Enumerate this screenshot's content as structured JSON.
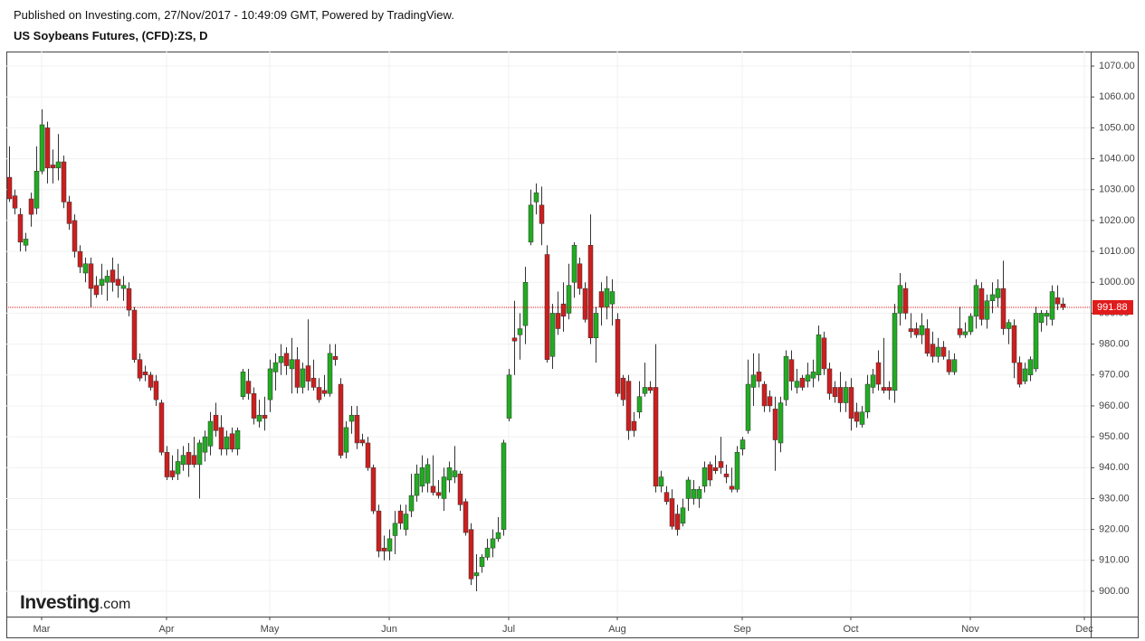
{
  "header": {
    "published": "Published on Investing.com, 27/Nov/2017 - 10:49:09 GMT, Powered by TradingView."
  },
  "logo": {
    "name": "Investing",
    "suffix": ".com"
  },
  "chart_data": {
    "type": "candlestick",
    "title": "US Soybeans Futures, (CFD):ZS, D",
    "up_color": "#22ab22",
    "down_color": "#cc1f1f",
    "wick_color": "#333333",
    "grid": true,
    "ylim": [
      891.8,
      1074.7
    ],
    "yticks": [
      {
        "value": 900,
        "label": "900.00"
      },
      {
        "value": 910,
        "label": "910.00"
      },
      {
        "value": 920,
        "label": "920.00"
      },
      {
        "value": 930,
        "label": "930.00"
      },
      {
        "value": 940,
        "label": "940.00"
      },
      {
        "value": 950,
        "label": "950.00"
      },
      {
        "value": 960,
        "label": "960.00"
      },
      {
        "value": 970,
        "label": "970.00"
      },
      {
        "value": 980,
        "label": "980.00"
      },
      {
        "value": 990,
        "label": "990.00"
      },
      {
        "value": 1000,
        "label": "1000.00"
      },
      {
        "value": 1010,
        "label": "1010.00"
      },
      {
        "value": 1020,
        "label": "1020.00"
      },
      {
        "value": 1030,
        "label": "1030.00"
      },
      {
        "value": 1040,
        "label": "1040.00"
      },
      {
        "value": 1050,
        "label": "1050.00"
      },
      {
        "value": 1060,
        "label": "1060.00"
      },
      {
        "value": 1070,
        "label": "1070.00"
      }
    ],
    "last_price": 991.88,
    "last_price_color": "#e01b1b",
    "categories": [
      null,
      null,
      null,
      null,
      null,
      null,
      "Mar",
      null,
      null,
      null,
      null,
      null,
      null,
      null,
      null,
      null,
      null,
      null,
      null,
      null,
      null,
      null,
      null,
      null,
      null,
      null,
      null,
      null,
      null,
      "Apr",
      null,
      null,
      null,
      null,
      null,
      null,
      null,
      null,
      null,
      null,
      null,
      null,
      null,
      null,
      null,
      null,
      null,
      null,
      "May",
      null,
      null,
      null,
      null,
      null,
      null,
      null,
      null,
      null,
      null,
      null,
      null,
      null,
      null,
      null,
      null,
      null,
      null,
      null,
      null,
      null,
      "Jun",
      null,
      null,
      null,
      null,
      null,
      null,
      null,
      null,
      null,
      null,
      null,
      null,
      null,
      null,
      null,
      null,
      null,
      null,
      null,
      null,
      null,
      "Jul",
      null,
      null,
      null,
      null,
      null,
      null,
      null,
      null,
      null,
      null,
      null,
      null,
      null,
      null,
      null,
      null,
      null,
      null,
      null,
      "Aug",
      null,
      null,
      null,
      null,
      null,
      null,
      null,
      null,
      null,
      null,
      null,
      null,
      null,
      null,
      null,
      null,
      null,
      null,
      null,
      null,
      null,
      null,
      "Sep",
      null,
      null,
      null,
      null,
      null,
      null,
      null,
      null,
      null,
      null,
      null,
      null,
      null,
      null,
      null,
      null,
      null,
      null,
      null,
      "Oct",
      null,
      null,
      null,
      null,
      null,
      null,
      null,
      null,
      null,
      null,
      null,
      null,
      null,
      null,
      null,
      null,
      null,
      null,
      null,
      null,
      null,
      "Nov",
      null,
      null,
      null,
      null,
      null,
      null,
      null,
      null,
      null,
      null,
      null,
      null,
      null,
      null,
      null,
      null,
      null,
      null,
      null,
      null,
      "Dec"
    ],
    "open": [
      1034,
      1028,
      1022,
      1012,
      1027,
      1024,
      1036,
      1050,
      1038,
      1037,
      1039,
      1026,
      1020,
      1010,
      1003,
      1006,
      999,
      999,
      1000,
      1004,
      1001,
      998,
      998,
      991,
      975,
      971,
      970,
      968,
      961,
      945,
      939,
      938,
      941,
      945,
      944,
      941,
      945,
      947,
      957,
      953,
      946,
      951,
      946,
      963,
      968,
      964,
      955,
      957,
      962,
      971,
      974,
      977,
      972,
      975,
      966,
      973,
      969,
      966,
      965,
      964,
      976,
      967,
      945,
      955,
      957,
      949,
      948,
      940,
      926,
      914,
      913,
      918,
      926,
      920,
      926,
      931,
      934,
      935,
      934,
      932,
      930,
      936,
      937,
      938,
      929,
      920,
      905,
      908,
      911,
      914,
      917,
      920,
      956,
      982,
      983,
      986,
      1013,
      1026,
      1025,
      1009,
      976,
      990,
      993,
      990,
      1000,
      1006,
      998,
      1012,
      982,
      997,
      992,
      993,
      988,
      969,
      968,
      955,
      958,
      964,
      966,
      966,
      934,
      932,
      930,
      925,
      922,
      930,
      930,
      930,
      934,
      941,
      940,
      942,
      938,
      934,
      933,
      946,
      952,
      966,
      971,
      967,
      963,
      959,
      948,
      962,
      975,
      966,
      969,
      968,
      969,
      970,
      982,
      972,
      966,
      966,
      961,
      966,
      958,
      954,
      958,
      966,
      974,
      966,
      966,
      965,
      990,
      998,
      985,
      985,
      983,
      985,
      980,
      976,
      979,
      975,
      971,
      985,
      983,
      984,
      989,
      998,
      988,
      994,
      995,
      998,
      985,
      986,
      974,
      968,
      970,
      972,
      987,
      989,
      988,
      995,
      993,
      null,
      null,
      null,
      null
    ],
    "high": [
      1044,
      1030,
      1024,
      1016,
      1029,
      1044,
      1056,
      1052,
      1043,
      1048,
      1041,
      1028,
      1022,
      1012,
      1008,
      1008,
      1002,
      1006,
      1004,
      1008,
      1006,
      1002,
      1000,
      992,
      977,
      973,
      971,
      970,
      962,
      947,
      944,
      946,
      947,
      948,
      950,
      949,
      952,
      958,
      961,
      957,
      952,
      953,
      953,
      972,
      972,
      966,
      962,
      963,
      975,
      977,
      980,
      979,
      982,
      979,
      974,
      988,
      975,
      969,
      970,
      980,
      980,
      969,
      955,
      960,
      960,
      951,
      950,
      941,
      928,
      918,
      920,
      926,
      928,
      928,
      938,
      941,
      944,
      943,
      944,
      936,
      940,
      942,
      947,
      939,
      930,
      922,
      912,
      912,
      917,
      920,
      924,
      949,
      972,
      994,
      990,
      1005,
      1030,
      1032,
      1031,
      1012,
      993,
      997,
      1000,
      1006,
      1013,
      1008,
      1000,
      1022,
      992,
      1000,
      1002,
      1001,
      990,
      970,
      970,
      958,
      968,
      974,
      968,
      980,
      939,
      934,
      933,
      928,
      930,
      937,
      936,
      934,
      942,
      942,
      944,
      950,
      941,
      940,
      947,
      950,
      975,
      977,
      977,
      968,
      965,
      963,
      963,
      978,
      978,
      972,
      970,
      974,
      975,
      986,
      984,
      974,
      968,
      971,
      968,
      969,
      961,
      960,
      970,
      972,
      978,
      982,
      968,
      993,
      1003,
      1000,
      990,
      987,
      990,
      988,
      984,
      982,
      981,
      978,
      977,
      992,
      987,
      990,
      1001,
      1000,
      996,
      1000,
      1001,
      1007,
      988,
      988,
      976,
      974,
      976,
      992,
      991,
      991,
      999,
      999,
      995,
      null,
      null,
      null,
      null
    ],
    "low": [
      1026,
      1022,
      1010,
      1010,
      1018,
      1022,
      1035,
      1032,
      1032,
      1033,
      1024,
      1017,
      1008,
      1003,
      1000,
      992,
      995,
      996,
      994,
      997,
      995,
      994,
      989,
      974,
      968,
      968,
      965,
      960,
      944,
      936,
      936,
      936,
      939,
      937,
      940,
      930,
      942,
      944,
      950,
      944,
      944,
      945,
      944,
      962,
      962,
      954,
      953,
      952,
      958,
      965,
      970,
      970,
      964,
      964,
      964,
      965,
      965,
      961,
      963,
      963,
      973,
      943,
      943,
      951,
      946,
      947,
      939,
      925,
      911,
      910,
      910,
      912,
      920,
      918,
      924,
      929,
      932,
      932,
      931,
      930,
      926,
      932,
      935,
      926,
      918,
      902,
      900,
      906,
      910,
      911,
      916,
      918,
      955,
      970,
      975,
      980,
      1012,
      1022,
      1012,
      974,
      972,
      983,
      984,
      988,
      995,
      996,
      987,
      980,
      974,
      986,
      988,
      986,
      963,
      960,
      949,
      950,
      956,
      963,
      964,
      932,
      932,
      928,
      920,
      918,
      921,
      926,
      928,
      927,
      932,
      934,
      938,
      938,
      935,
      932,
      932,
      944,
      951,
      960,
      966,
      958,
      958,
      939,
      945,
      960,
      965,
      964,
      965,
      966,
      966,
      968,
      970,
      962,
      961,
      958,
      958,
      952,
      953,
      953,
      956,
      964,
      965,
      964,
      962,
      961,
      986,
      988,
      982,
      982,
      980,
      976,
      974,
      974,
      975,
      970,
      970,
      982,
      982,
      983,
      985,
      986,
      985,
      990,
      992,
      983,
      980,
      969,
      966,
      967,
      968,
      971,
      984,
      986,
      986,
      991,
      991,
      null,
      null,
      null,
      null
    ],
    "close": [
      1027,
      1024,
      1013,
      1014,
      1022,
      1036,
      1051,
      1037,
      1037,
      1039,
      1026,
      1019,
      1010,
      1005,
      1006,
      998,
      996,
      1001,
      1002,
      1000,
      999,
      999,
      991,
      975,
      969,
      970,
      966,
      962,
      945,
      937,
      937,
      942,
      944,
      941,
      941,
      948,
      950,
      955,
      952,
      946,
      950,
      946,
      952,
      971,
      964,
      956,
      957,
      956,
      972,
      974,
      976,
      973,
      975,
      966,
      972,
      968,
      966,
      962,
      964,
      977,
      975,
      944,
      953,
      957,
      948,
      948,
      940,
      926,
      913,
      913,
      917,
      922,
      922,
      925,
      931,
      938,
      940,
      941,
      932,
      931,
      937,
      940,
      939,
      928,
      919,
      904,
      906,
      911,
      914,
      917,
      919,
      948,
      970,
      981,
      985,
      1000,
      1025,
      1029,
      1019,
      975,
      990,
      985,
      989,
      999,
      1012,
      998,
      988,
      982,
      990,
      992,
      998,
      997,
      964,
      962,
      952,
      952,
      963,
      966,
      965,
      934,
      937,
      929,
      921,
      920,
      927,
      936,
      933,
      933,
      940,
      936,
      939,
      940,
      937,
      933,
      945,
      949,
      967,
      970,
      968,
      960,
      960,
      949,
      961,
      976,
      968,
      968,
      966,
      970,
      971,
      983,
      972,
      964,
      963,
      961,
      966,
      956,
      955,
      958,
      967,
      970,
      967,
      965,
      965,
      990,
      999,
      990,
      984,
      983,
      986,
      977,
      976,
      979,
      976,
      971,
      975,
      983,
      984,
      989,
      999,
      988,
      994,
      996,
      998,
      985,
      987,
      974,
      967,
      972,
      975,
      990,
      990,
      990,
      997,
      993,
      991.88,
      null,
      null,
      null,
      null
    ]
  }
}
